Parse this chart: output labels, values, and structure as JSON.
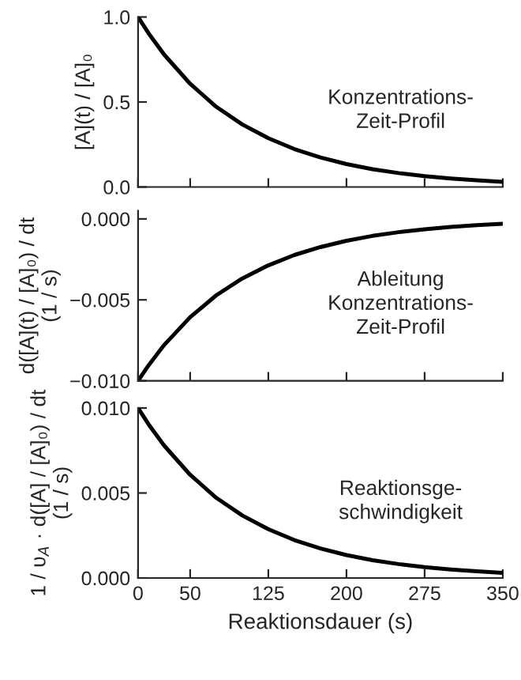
{
  "chart_data": [
    {
      "type": "line",
      "ylabel": "[A](t) / [A]₀",
      "annotations": [
        "Konzentrations-\nZeit-Profil"
      ],
      "x": [
        0,
        10,
        25,
        50,
        75,
        100,
        125,
        150,
        175,
        200,
        225,
        250,
        275,
        300,
        325,
        350
      ],
      "series": [
        {
          "color": "#000000",
          "values": [
            1.0,
            0.905,
            0.779,
            0.607,
            0.472,
            0.368,
            0.287,
            0.223,
            0.174,
            0.135,
            0.105,
            0.082,
            0.064,
            0.05,
            0.039,
            0.03
          ]
        }
      ],
      "xlim": [
        0,
        350
      ],
      "ylim": [
        0,
        1.0
      ],
      "yticks": [
        {
          "value": 0,
          "label": "0.0"
        },
        0.5,
        {
          "value": 1,
          "label": "1.0"
        }
      ],
      "xticks": [
        0,
        50,
        125,
        200,
        275,
        350
      ],
      "tick_labels": "y",
      "grid": false,
      "legend": false
    },
    {
      "type": "line",
      "ylabel": "d([A](t) / [A]₀) / dt\n(1 / s)",
      "annotations": [
        "Ableitung\nKonzentrations-\nZeit-Profil"
      ],
      "x": [
        0,
        10,
        25,
        50,
        75,
        100,
        125,
        150,
        175,
        200,
        225,
        250,
        275,
        300,
        325,
        350
      ],
      "series": [
        {
          "color": "#000000",
          "values": [
            -0.01,
            -0.00905,
            -0.00779,
            -0.00607,
            -0.00472,
            -0.00368,
            -0.00287,
            -0.00223,
            -0.00174,
            -0.00135,
            -0.00105,
            -0.00082,
            -0.00064,
            -0.0005,
            -0.00039,
            -0.0003
          ]
        }
      ],
      "xlim": [
        0,
        350
      ],
      "ylim": [
        -0.01,
        0.0005
      ],
      "yticks": [
        {
          "value": -0.01,
          "label": "−0.010"
        },
        {
          "value": -0.005,
          "label": "−0.005"
        },
        {
          "value": 0,
          "label": "0.000"
        }
      ],
      "xticks": [
        0,
        50,
        125,
        200,
        275,
        350
      ],
      "tick_labels": "y",
      "grid": false,
      "legend": false
    },
    {
      "type": "line",
      "xlabel": "Reaktionsdauer (s)",
      "ylabel": "1 / υ$_{A}$ · d([A] / [A]₀) / dt\n(1 / s)",
      "annotations": [
        "Reaktionsge-\nschwindigkeit"
      ],
      "x": [
        0,
        10,
        25,
        50,
        75,
        100,
        125,
        150,
        175,
        200,
        225,
        250,
        275,
        300,
        325,
        350
      ],
      "series": [
        {
          "color": "#000000",
          "values": [
            0.01,
            0.00905,
            0.00779,
            0.00607,
            0.00472,
            0.00368,
            0.00287,
            0.00223,
            0.00174,
            0.00135,
            0.00105,
            0.00082,
            0.00064,
            0.0005,
            0.00039,
            0.0003
          ]
        }
      ],
      "xlim": [
        0,
        350
      ],
      "ylim": [
        0,
        0.01
      ],
      "yticks": [
        {
          "value": 0,
          "label": "0.000"
        },
        {
          "value": 0.005,
          "label": "0.005"
        },
        {
          "value": 0.01,
          "label": "0.010"
        }
      ],
      "xticks": [
        0,
        50,
        125,
        200,
        275,
        350
      ],
      "grid": false,
      "legend": false
    }
  ]
}
